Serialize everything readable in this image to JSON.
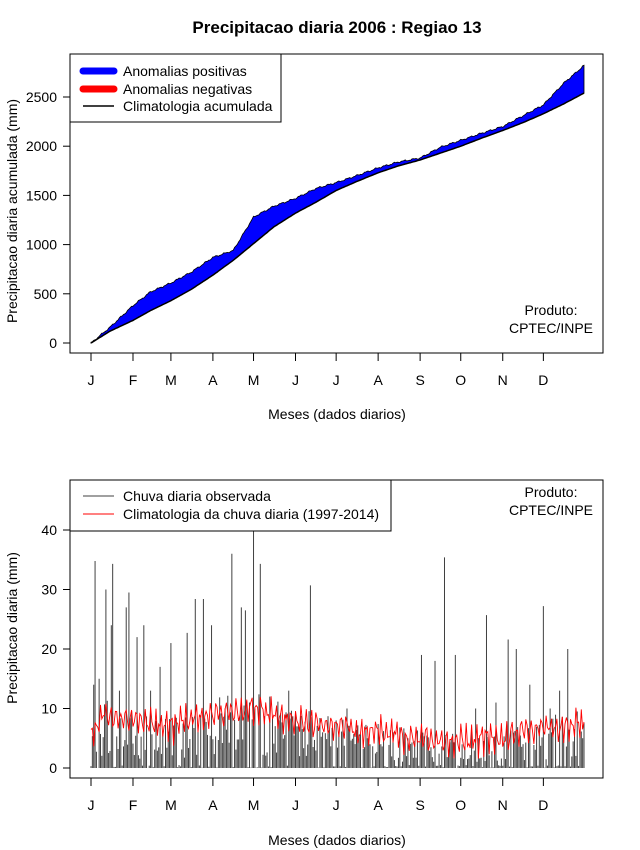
{
  "title": "Precipitacao diaria 2006 : Regiao 13",
  "chart_data": [
    {
      "type": "area",
      "ylabel": "Precipitacao diaria acumulada (mm)",
      "xlabel": "Meses (dados diarios)",
      "x_range": [
        1,
        365
      ],
      "ylim": [
        0,
        2850
      ],
      "yticks": [
        0,
        500,
        1000,
        1500,
        2000,
        2500
      ],
      "months": [
        "J",
        "F",
        "M",
        "A",
        "M",
        "J",
        "J",
        "A",
        "S",
        "O",
        "N",
        "D"
      ],
      "month_days": [
        1,
        32,
        60,
        91,
        121,
        152,
        182,
        213,
        244,
        274,
        305,
        335
      ],
      "legend": [
        {
          "label": "Anomalias positivas",
          "color": "#0000ff"
        },
        {
          "label": "Anomalias negativas",
          "color": "#ff0000"
        },
        {
          "label": "Climatologia acumulada",
          "color": "#000000"
        }
      ],
      "product_label_1": "Produto:",
      "product_label_2": "CPTEC/INPE",
      "day": [
        1,
        15,
        32,
        45,
        60,
        75,
        91,
        106,
        121,
        136,
        152,
        167,
        182,
        197,
        213,
        228,
        244,
        259,
        274,
        289,
        305,
        320,
        335,
        350,
        365
      ],
      "climatology": [
        0,
        120,
        230,
        330,
        430,
        545,
        690,
        840,
        1010,
        1180,
        1320,
        1430,
        1550,
        1640,
        1730,
        1800,
        1860,
        1930,
        2000,
        2080,
        2160,
        2240,
        2330,
        2430,
        2540
      ],
      "observed": [
        0,
        160,
        380,
        520,
        610,
        720,
        870,
        940,
        1280,
        1390,
        1470,
        1570,
        1630,
        1700,
        1780,
        1840,
        1880,
        1990,
        2060,
        2130,
        2200,
        2310,
        2420,
        2640,
        2820
      ]
    },
    {
      "type": "bar",
      "ylabel": "Precipitacao diaria (mm)",
      "xlabel": "Meses (dados diarios)",
      "x_range": [
        1,
        365
      ],
      "ylim": [
        0,
        40
      ],
      "yticks": [
        0,
        10,
        20,
        30,
        40
      ],
      "months": [
        "J",
        "F",
        "M",
        "A",
        "M",
        "J",
        "J",
        "A",
        "S",
        "O",
        "N",
        "D"
      ],
      "month_days": [
        1,
        32,
        60,
        91,
        121,
        152,
        182,
        213,
        244,
        274,
        305,
        335
      ],
      "legend": [
        {
          "label": "Chuva diaria observada",
          "color": "#404040"
        },
        {
          "label": "Climatologia da chuva diaria (1997-2014)",
          "color": "#ff0000"
        }
      ],
      "product_label_1": "Produto:",
      "product_label_2": "CPTEC/INPE",
      "observed_peaks": [
        {
          "day": 3,
          "value": 14
        },
        {
          "day": 4,
          "value": 34.8
        },
        {
          "day": 7,
          "value": 15
        },
        {
          "day": 12,
          "value": 30
        },
        {
          "day": 16,
          "value": 24
        },
        {
          "day": 17,
          "value": 34.3
        },
        {
          "day": 22,
          "value": 13
        },
        {
          "day": 27,
          "value": 27
        },
        {
          "day": 29,
          "value": 29.5
        },
        {
          "day": 35,
          "value": 22
        },
        {
          "day": 40,
          "value": 24
        },
        {
          "day": 45,
          "value": 13
        },
        {
          "day": 52,
          "value": 17
        },
        {
          "day": 60,
          "value": 21
        },
        {
          "day": 72,
          "value": 22.7
        },
        {
          "day": 78,
          "value": 28.4
        },
        {
          "day": 84,
          "value": 28.4
        },
        {
          "day": 90,
          "value": 24
        },
        {
          "day": 100,
          "value": 10
        },
        {
          "day": 105,
          "value": 36
        },
        {
          "day": 112,
          "value": 27
        },
        {
          "day": 115,
          "value": 26.5
        },
        {
          "day": 121,
          "value": 40
        },
        {
          "day": 126,
          "value": 34.3
        },
        {
          "day": 133,
          "value": 12
        },
        {
          "day": 140,
          "value": 8
        },
        {
          "day": 147,
          "value": 13
        },
        {
          "day": 153,
          "value": 7
        },
        {
          "day": 163,
          "value": 30.7
        },
        {
          "day": 172,
          "value": 6
        },
        {
          "day": 182,
          "value": 8
        },
        {
          "day": 190,
          "value": 10
        },
        {
          "day": 205,
          "value": 5
        },
        {
          "day": 215,
          "value": 4
        },
        {
          "day": 224,
          "value": 6
        },
        {
          "day": 235,
          "value": 5
        },
        {
          "day": 245,
          "value": 19
        },
        {
          "day": 255,
          "value": 18
        },
        {
          "day": 262,
          "value": 35.4
        },
        {
          "day": 270,
          "value": 19
        },
        {
          "day": 285,
          "value": 10
        },
        {
          "day": 293,
          "value": 25.7
        },
        {
          "day": 300,
          "value": 11
        },
        {
          "day": 309,
          "value": 21.6
        },
        {
          "day": 315,
          "value": 20
        },
        {
          "day": 325,
          "value": 14
        },
        {
          "day": 335,
          "value": 27.2
        },
        {
          "day": 340,
          "value": 10
        },
        {
          "day": 347,
          "value": 13
        },
        {
          "day": 353,
          "value": 20
        },
        {
          "day": 360,
          "value": 9.5
        }
      ],
      "climatology_anchor": [
        {
          "day": 1,
          "value": 5
        },
        {
          "day": 10,
          "value": 9
        },
        {
          "day": 30,
          "value": 8
        },
        {
          "day": 60,
          "value": 7
        },
        {
          "day": 90,
          "value": 9
        },
        {
          "day": 120,
          "value": 10
        },
        {
          "day": 150,
          "value": 8
        },
        {
          "day": 180,
          "value": 7
        },
        {
          "day": 210,
          "value": 6
        },
        {
          "day": 240,
          "value": 5
        },
        {
          "day": 270,
          "value": 4.5
        },
        {
          "day": 300,
          "value": 5
        },
        {
          "day": 330,
          "value": 6.5
        },
        {
          "day": 365,
          "value": 7.5
        }
      ]
    }
  ]
}
